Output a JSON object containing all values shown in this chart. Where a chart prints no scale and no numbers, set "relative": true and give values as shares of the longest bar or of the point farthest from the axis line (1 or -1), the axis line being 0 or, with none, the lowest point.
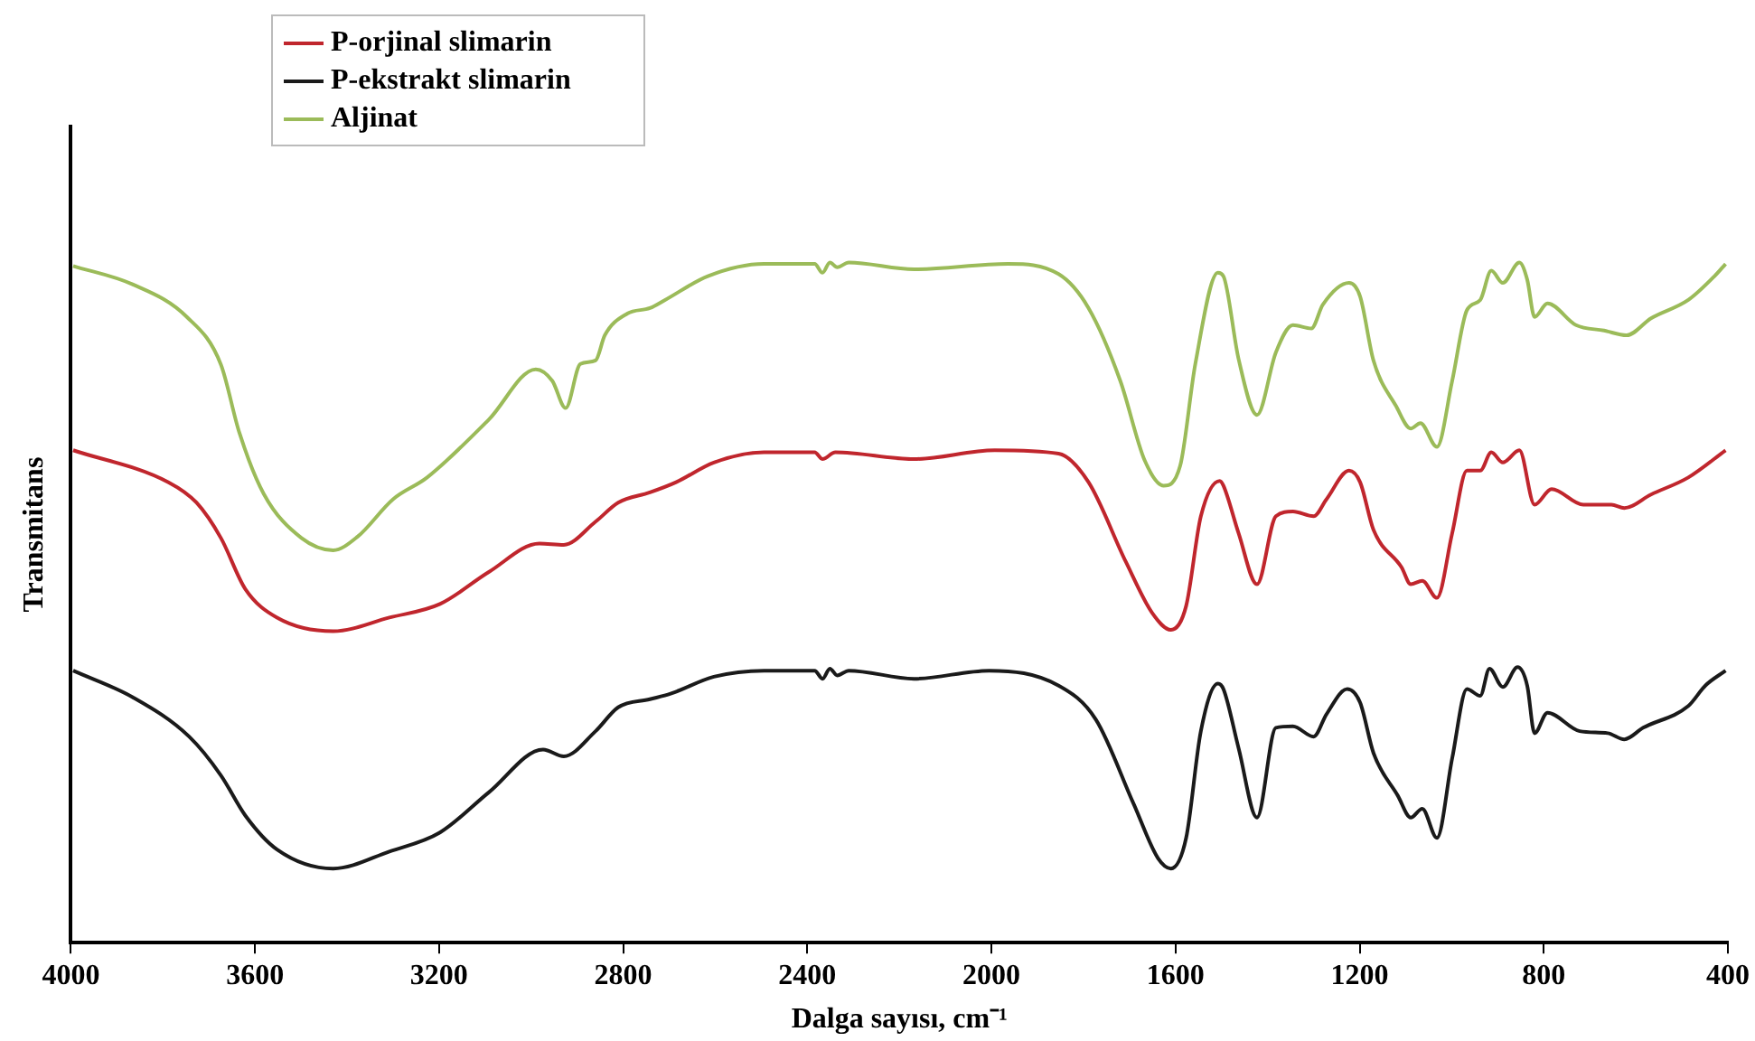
{
  "chart_data": {
    "type": "line",
    "xlabel": "Dalga sayısı, cm⁻¹",
    "ylabel": "Transmitans",
    "relative": true,
    "xlim": [
      4000,
      400
    ],
    "xticks": [
      4000,
      3600,
      3200,
      2800,
      2400,
      2000,
      1600,
      1200,
      800,
      400
    ],
    "grid": false,
    "legend": "top left",
    "marker": "none",
    "line_style": "solid",
    "series": [
      {
        "name": "P-orjinal slimarin",
        "color": "#c0262d",
        "x": [
          3995,
          3788,
          3727,
          3674,
          3621,
          3552,
          3430,
          3308,
          3198,
          3092,
          2982,
          2929,
          2860,
          2811,
          2742,
          2685,
          2603,
          2494,
          2384,
          2367,
          2339,
          2168,
          1993,
          1854,
          1789,
          1708,
          1651,
          1610,
          1577,
          1545,
          1504,
          1496,
          1463,
          1423,
          1382,
          1345,
          1300,
          1272,
          1223,
          1199,
          1170,
          1109,
          1089,
          1064,
          1032,
          999,
          967,
          938,
          914,
          889,
          853,
          820,
          783,
          714,
          653,
          625,
          567,
          486,
          405
        ],
        "values": [
          0.724,
          0.677,
          0.647,
          0.595,
          0.52,
          0.478,
          0.458,
          0.478,
          0.498,
          0.545,
          0.587,
          0.585,
          0.619,
          0.647,
          0.662,
          0.677,
          0.706,
          0.721,
          0.721,
          0.711,
          0.721,
          0.711,
          0.724,
          0.719,
          0.677,
          0.56,
          0.485,
          0.46,
          0.495,
          0.627,
          0.679,
          0.672,
          0.602,
          0.527,
          0.627,
          0.634,
          0.627,
          0.652,
          0.694,
          0.677,
          0.607,
          0.552,
          0.527,
          0.532,
          0.507,
          0.602,
          0.694,
          0.694,
          0.721,
          0.706,
          0.724,
          0.644,
          0.667,
          0.644,
          0.644,
          0.639,
          0.659,
          0.684,
          0.724
        ]
      },
      {
        "name": "P-ekstrakt slimarin",
        "color": "#1a1a1a",
        "x": [
          3995,
          3866,
          3743,
          3674,
          3621,
          3552,
          3430,
          3308,
          3198,
          3092,
          2974,
          2929,
          2860,
          2811,
          2742,
          2697,
          2603,
          2494,
          2384,
          2367,
          2351,
          2335,
          2310,
          2168,
          2005,
          1854,
          1773,
          1691,
          1638,
          1610,
          1577,
          1545,
          1508,
          1496,
          1463,
          1423,
          1382,
          1345,
          1300,
          1272,
          1227,
          1199,
          1170,
          1117,
          1089,
          1064,
          1032,
          999,
          967,
          938,
          918,
          889,
          857,
          836,
          820,
          792,
          722,
          661,
          625,
          584,
          486,
          449,
          405
        ],
        "values": [
          0.4,
          0.361,
          0.303,
          0.246,
          0.187,
          0.137,
          0.109,
          0.134,
          0.162,
          0.221,
          0.284,
          0.274,
          0.311,
          0.346,
          0.358,
          0.366,
          0.391,
          0.4,
          0.4,
          0.388,
          0.403,
          0.393,
          0.4,
          0.388,
          0.4,
          0.378,
          0.328,
          0.204,
          0.124,
          0.109,
          0.154,
          0.311,
          0.381,
          0.373,
          0.286,
          0.184,
          0.316,
          0.318,
          0.303,
          0.336,
          0.373,
          0.353,
          0.279,
          0.216,
          0.184,
          0.197,
          0.154,
          0.271,
          0.373,
          0.363,
          0.403,
          0.376,
          0.405,
          0.378,
          0.308,
          0.338,
          0.311,
          0.308,
          0.299,
          0.316,
          0.348,
          0.378,
          0.4
        ]
      },
      {
        "name": "Aljinat",
        "color": "#9bbb59",
        "x": [
          3995,
          3866,
          3748,
          3674,
          3634,
          3581,
          3499,
          3430,
          3377,
          3300,
          3226,
          3092,
          2990,
          2954,
          2925,
          2893,
          2860,
          2840,
          2791,
          2742,
          2709,
          2616,
          2494,
          2384,
          2367,
          2351,
          2335,
          2310,
          2168,
          1964,
          1854,
          1789,
          1720,
          1667,
          1626,
          1590,
          1557,
          1508,
          1496,
          1463,
          1423,
          1382,
          1345,
          1305,
          1280,
          1223,
          1199,
          1170,
          1121,
          1089,
          1068,
          1032,
          999,
          967,
          938,
          914,
          889,
          853,
          836,
          820,
          792,
          730,
          669,
          620,
          567,
          486,
          429,
          405
        ],
        "values": [
          0.995,
          0.968,
          0.92,
          0.85,
          0.75,
          0.66,
          0.595,
          0.577,
          0.597,
          0.652,
          0.684,
          0.769,
          0.843,
          0.826,
          0.786,
          0.851,
          0.856,
          0.893,
          0.925,
          0.933,
          0.945,
          0.98,
          0.998,
          0.998,
          0.985,
          1,
          0.993,
          1,
          0.99,
          0.998,
          0.983,
          0.933,
          0.826,
          0.709,
          0.672,
          0.701,
          0.851,
          0.985,
          0.98,
          0.858,
          0.776,
          0.868,
          0.908,
          0.903,
          0.938,
          0.97,
          0.95,
          0.856,
          0.789,
          0.756,
          0.764,
          0.729,
          0.826,
          0.93,
          0.945,
          0.988,
          0.97,
          1,
          0.975,
          0.92,
          0.94,
          0.908,
          0.9,
          0.893,
          0.918,
          0.945,
          0.98,
          0.998
        ]
      }
    ]
  }
}
